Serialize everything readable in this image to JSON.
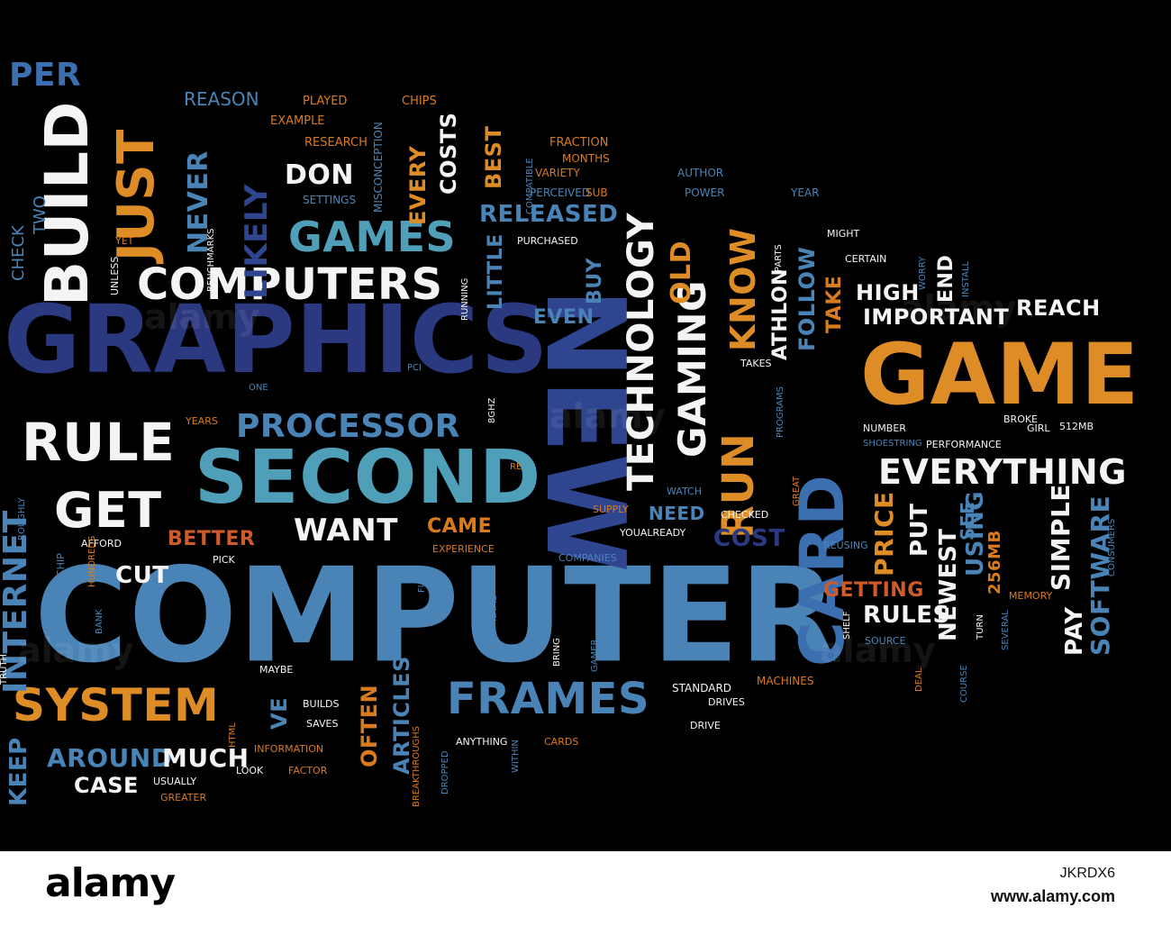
{
  "words": {
    "computer": "COMPUTER",
    "graphics": "GRAPHICS",
    "game": "GAME",
    "new": "NEW",
    "second": "SECOND",
    "card": "CARD",
    "build": "BUILD",
    "rule": "RULE",
    "get": "GET",
    "computers": "COMPUTERS",
    "games": "GAMES",
    "system": "SYSTEM",
    "frames": "FRAMES",
    "technology": "TECHNOLOGY",
    "gaming": "GAMING",
    "just": "JUST",
    "processor": "PROCESSOR",
    "everything": "EVERYTHING",
    "run": "RUN",
    "know": "KNOW",
    "per": "PER",
    "internet": "INTERNET",
    "don": "DON",
    "want": "WANT",
    "likely": "LIKELY",
    "never": "NEVER",
    "old": "OLD",
    "released": "RELEASED",
    "around": "AROUND",
    "much": "MUCH",
    "keep": "KEEP",
    "case": "CASE",
    "cut": "CUT",
    "better": "BETTER",
    "came": "CAME",
    "cost": "COST",
    "price": "PRICE",
    "put": "PUT",
    "newest": "NEWEST",
    "using": "USING",
    "software": "SOFTWARE",
    "simple": "SIMPLE",
    "rules": "RULES",
    "pay": "PAY",
    "getting": "GETTING",
    "high": "HIGH",
    "important": "IMPORTANT",
    "reach": "REACH",
    "take": "TAKE",
    "follow": "FOLLOW",
    "athlon": "ATHLON",
    "end": "END",
    "best": "BEST",
    "costs": "COSTS",
    "every": "EVERY",
    "even": "EVEN",
    "buy": "BUY",
    "little": "LITTLE",
    "need": "NEED",
    "often": "OFTEN",
    "articles": "ARTICLES",
    "ve": "VE",
    "see": "SEE",
    "mb256": "256MB",
    "reason": "REASON",
    "check": "CHECK",
    "two": "TWO",
    "played": "PLAYED",
    "chips": "CHIPS",
    "example": "EXAMPLE",
    "research": "RESEARCH",
    "misconception": "MISCONCEPTION",
    "fraction": "FRACTION",
    "months": "MONTHS",
    "variety": "VARIETY",
    "author": "AUTHOR",
    "compatible": "COMPATIBLE",
    "perceived": "PERCEIVED",
    "sub": "SUB",
    "power": "POWER",
    "year": "YEAR",
    "settings": "SETTINGS",
    "benchmarks": "BENCHMARKS",
    "yet": "YET",
    "unless": "UNLESS",
    "purchased": "PURCHASED",
    "running": "RUNNING",
    "parts": "PARTS",
    "might": "MIGHT",
    "certain": "CERTAIN",
    "worry": "WORRY",
    "install": "INSTALL",
    "takes": "TAKES",
    "programs": "PROGRAMS",
    "pci": "PCI",
    "one": "ONE",
    "years": "YEARS",
    "ghz": "8GHZ",
    "re": "RE",
    "watch": "WATCH",
    "supply": "SUPPLY",
    "youalready": "YOUALREADY",
    "full": "FULL",
    "companies": "COMPANIES",
    "experience": "EXPERIENCE",
    "afford": "AFFORD",
    "pick": "PICK",
    "chip": "CHIP",
    "hundreds": "HUNDREDS",
    "roughly": "ROUGHLY",
    "truth": "TRUTH",
    "bank": "BANK",
    "name": "NAME",
    "bring": "BRING",
    "maybe": "MAYBE",
    "gamer": "GAMER",
    "standard": "STANDARD",
    "drives": "DRIVES",
    "machines": "MACHINES",
    "drive": "DRIVE",
    "builds": "BUILDS",
    "saves": "SAVES",
    "html": "HTML",
    "information": "INFORMATION",
    "anything": "ANYTHING",
    "breakthroughs": "BREAKTHROUGHS",
    "within": "WITHIN",
    "cards": "CARDS",
    "dropped": "DROPPED",
    "look": "LOOK",
    "factor": "FACTOR",
    "usually": "USUALLY",
    "greater": "GREATER",
    "great": "GREAT",
    "number": "NUMBER",
    "broke": "BROKE",
    "girl": "GIRL",
    "shoestring": "SHOESTRING",
    "performance": "PERFORMANCE",
    "mb512": "512MB",
    "checked": "CHECKED",
    "reusing": "REUSING",
    "consumers": "CONSUMERS",
    "memory": "MEMORY",
    "turn": "TURN",
    "several": "SEVERAL",
    "shelf": "SHELF",
    "source": "SOURCE",
    "deal": "DEAL",
    "course": "COURSE"
  },
  "watermark": "alamy",
  "footer": {
    "logo": "alamy",
    "image_id": "JKRDX6",
    "url": "www.alamy.com"
  },
  "colors": {
    "background": "#000000",
    "light_blue": "#4a84b6",
    "navy": "#2b3a80",
    "orange": "#d97b1d",
    "white": "#f4f4f4",
    "teal": "#4f9fb8"
  }
}
